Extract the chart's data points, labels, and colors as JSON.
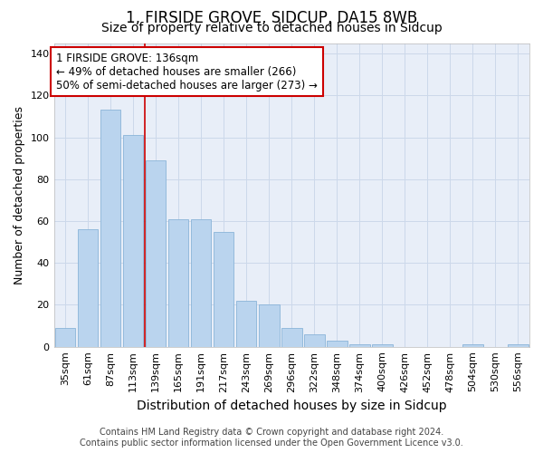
{
  "title1": "1, FIRSIDE GROVE, SIDCUP, DA15 8WB",
  "title2": "Size of property relative to detached houses in Sidcup",
  "xlabel": "Distribution of detached houses by size in Sidcup",
  "ylabel": "Number of detached properties",
  "categories": [
    "35sqm",
    "61sqm",
    "87sqm",
    "113sqm",
    "139sqm",
    "165sqm",
    "191sqm",
    "217sqm",
    "243sqm",
    "269sqm",
    "296sqm",
    "322sqm",
    "348sqm",
    "374sqm",
    "400sqm",
    "426sqm",
    "452sqm",
    "478sqm",
    "504sqm",
    "530sqm",
    "556sqm"
  ],
  "values": [
    9,
    56,
    113,
    101,
    89,
    61,
    61,
    55,
    22,
    20,
    9,
    6,
    3,
    1,
    1,
    0,
    0,
    0,
    1,
    0,
    1
  ],
  "bar_color": "#bad4ee",
  "bar_edge_color": "#8ab4d8",
  "vline_x": 3.5,
  "vline_color": "#cc0000",
  "annotation_text": "1 FIRSIDE GROVE: 136sqm\n← 49% of detached houses are smaller (266)\n50% of semi-detached houses are larger (273) →",
  "annotation_box_facecolor": "#ffffff",
  "annotation_box_edgecolor": "#cc0000",
  "ylim": [
    0,
    145
  ],
  "yticks": [
    0,
    20,
    40,
    60,
    80,
    100,
    120,
    140
  ],
  "grid_color": "#ccd8ea",
  "background_color": "#e8eef8",
  "footer1": "Contains HM Land Registry data © Crown copyright and database right 2024.",
  "footer2": "Contains public sector information licensed under the Open Government Licence v3.0.",
  "title1_fontsize": 12,
  "title2_fontsize": 10,
  "xlabel_fontsize": 10,
  "ylabel_fontsize": 9,
  "tick_fontsize": 8,
  "annotation_fontsize": 8.5,
  "footer_fontsize": 7
}
